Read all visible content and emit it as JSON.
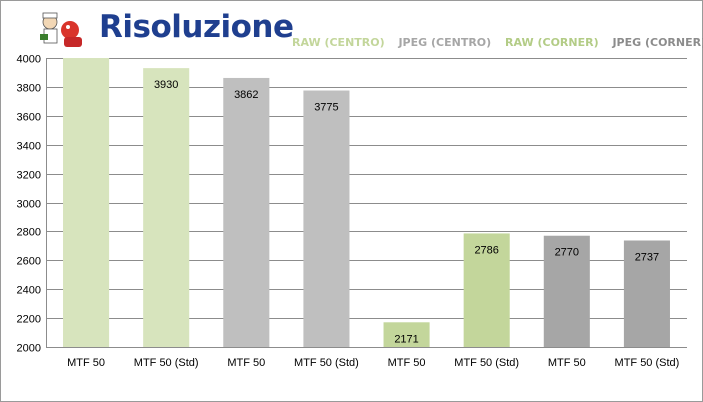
{
  "header": {
    "title": "Risoluzione",
    "title_color": "#1f3f8f"
  },
  "chart_data": {
    "type": "bar",
    "title": "Risoluzione",
    "xlabel": "",
    "ylabel": "",
    "ylim": [
      2000,
      4000
    ],
    "yticks": [
      2000,
      2200,
      2400,
      2600,
      2800,
      3000,
      3200,
      3400,
      3600,
      3800,
      4000
    ],
    "grid": true,
    "legend_position": "top-right",
    "categories": [
      "MTF 50",
      "MTF 50 (Std)",
      "MTF 50",
      "MTF 50 (Std)",
      "MTF 50",
      "MTF 50 (Std)",
      "MTF 50",
      "MTF 50 (Std)"
    ],
    "values": [
      4000,
      3930,
      3862,
      3775,
      2171,
      2786,
      2770,
      2737
    ],
    "value_labels": [
      "",
      "3930",
      "3862",
      "3775",
      "2171",
      "2786",
      "2770",
      "2737"
    ],
    "series": [
      {
        "name": "RAW (CENTRO)",
        "color": "#d7e4bd",
        "bars": [
          0,
          1
        ]
      },
      {
        "name": "JPEG (CENTRO)",
        "color": "#bfbfbf",
        "bars": [
          2,
          3
        ]
      },
      {
        "name": "RAW (CORNER)",
        "color": "#c3d69b",
        "bars": [
          4,
          5
        ]
      },
      {
        "name": "JPEG (CORNER)",
        "color": "#a6a6a6",
        "bars": [
          6,
          7
        ]
      }
    ],
    "legend_text_colors": [
      "#c3d69b",
      "#a6a6a6",
      "#b3cc86",
      "#8c8c8c"
    ]
  }
}
